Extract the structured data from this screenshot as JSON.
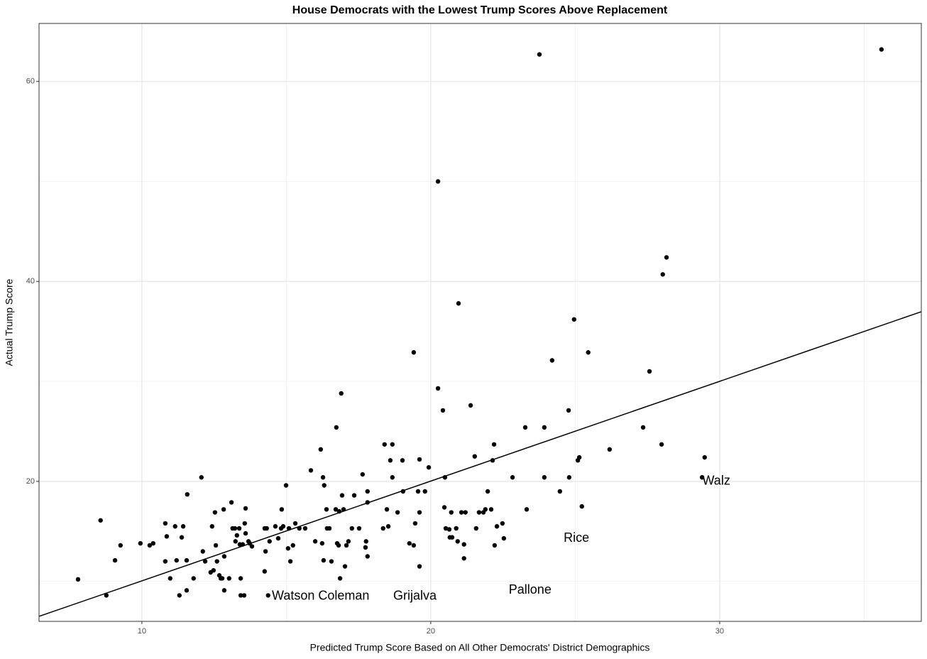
{
  "chart_data": {
    "type": "scatter",
    "title": "House Democrats with the Lowest Trump Scores Above Replacement",
    "x_label": "Predicted Trump Score Based on All Other Democrats' District Demographics",
    "y_label": "Actual Trump Score",
    "xlim": [
      6.44,
      36.98
    ],
    "ylim": [
      6.0,
      65.8
    ],
    "xticks": [
      10,
      20,
      30
    ],
    "yticks": [
      20,
      40,
      60
    ],
    "x_minor_grid": [
      15,
      25,
      35
    ],
    "y_minor_grid": [
      10,
      30,
      50
    ],
    "grid": true,
    "color": "#000000",
    "trend_line": {
      "x": [
        6.44,
        36.98
      ],
      "y": [
        6.5,
        36.97
      ],
      "color": "#000000"
    },
    "annotations": [
      {
        "text": "Watson Coleman",
        "x": 14.5,
        "y": 8.5
      },
      {
        "text": "Grijalva",
        "x": 18.7,
        "y": 8.5
      },
      {
        "text": "Pallone",
        "x": 22.7,
        "y": 9.1
      },
      {
        "text": "Rice",
        "x": 24.6,
        "y": 14.3
      },
      {
        "text": "Walz",
        "x": 29.4,
        "y": 20.0
      }
    ],
    "x": [
      7.79,
      8.57,
      8.77,
      9.07,
      9.26,
      9.95,
      10.27,
      10.39,
      10.81,
      10.86,
      10.81,
      10.98,
      11.15,
      11.2,
      11.3,
      11.38,
      11.43,
      11.55,
      11.55,
      11.57,
      11.79,
      12.06,
      12.11,
      12.19,
      12.38,
      12.43,
      12.48,
      12.53,
      12.56,
      12.6,
      12.68,
      12.73,
      12.78,
      12.83,
      12.85,
      12.85,
      13.02,
      13.1,
      13.14,
      13.22,
      13.24,
      13.29,
      13.37,
      13.39,
      13.42,
      13.42,
      13.49,
      13.54,
      13.56,
      13.59,
      13.59,
      13.69,
      13.73,
      13.81,
      14.25,
      14.25,
      14.28,
      14.32,
      14.37,
      14.42,
      14.62,
      14.72,
      14.82,
      14.84,
      14.89,
      14.99,
      15.06,
      15.09,
      15.14,
      15.23,
      15.31,
      15.45,
      15.65,
      15.85,
      16.0,
      16.19,
      16.24,
      16.27,
      16.29,
      16.31,
      16.39,
      16.41,
      16.49,
      16.56,
      16.71,
      16.73,
      16.76,
      16.81,
      16.83,
      16.86,
      16.9,
      16.93,
      16.98,
      17.03,
      17.08,
      17.15,
      17.27,
      17.35,
      17.52,
      17.64,
      17.74,
      17.76,
      17.81,
      17.81,
      17.81,
      18.35,
      18.4,
      18.48,
      18.53,
      18.6,
      18.67,
      18.67,
      18.85,
      19.02,
      19.04,
      19.26,
      19.41,
      19.41,
      19.46,
      19.56,
      19.61,
      19.61,
      19.61,
      19.8,
      19.93,
      20.25,
      20.25,
      20.42,
      20.47,
      20.49,
      20.52,
      20.64,
      20.66,
      20.71,
      20.74,
      20.88,
      20.93,
      20.96,
      21.06,
      21.15,
      21.15,
      21.2,
      21.38,
      21.52,
      21.57,
      21.67,
      21.82,
      21.89,
      21.97,
      22.09,
      22.14,
      22.19,
      22.21,
      22.29,
      22.48,
      22.53,
      22.83,
      23.27,
      23.32,
      23.76,
      23.93,
      23.93,
      24.2,
      24.47,
      24.77,
      24.79,
      24.96,
      25.09,
      25.14,
      25.23,
      25.45,
      26.19,
      27.35,
      27.57,
      27.99,
      28.03,
      28.16,
      29.39,
      29.48,
      35.6
    ],
    "values": [
      10.2,
      16.1,
      8.6,
      12.1,
      13.6,
      13.8,
      13.6,
      13.8,
      15.8,
      14.5,
      12.0,
      10.3,
      15.5,
      12.1,
      8.6,
      14.4,
      15.5,
      12.1,
      9.1,
      18.7,
      10.3,
      20.4,
      13.0,
      12.0,
      10.9,
      15.5,
      11.1,
      16.9,
      13.6,
      12.0,
      10.6,
      10.3,
      10.3,
      17.2,
      9.1,
      12.5,
      10.3,
      17.9,
      15.3,
      15.3,
      14.0,
      14.6,
      15.3,
      13.7,
      10.3,
      8.6,
      13.7,
      8.6,
      15.8,
      17.3,
      14.8,
      14.0,
      13.8,
      13.5,
      15.3,
      11.0,
      13.0,
      15.3,
      8.6,
      14.0,
      15.5,
      14.3,
      15.3,
      17.2,
      15.5,
      19.6,
      13.3,
      15.3,
      12.0,
      13.6,
      15.8,
      15.3,
      15.3,
      21.1,
      14.0,
      23.2,
      13.8,
      20.4,
      12.1,
      19.6,
      17.2,
      15.3,
      15.3,
      12.0,
      17.2,
      25.4,
      13.8,
      13.6,
      17.0,
      10.3,
      28.8,
      18.6,
      17.2,
      11.5,
      13.6,
      14.0,
      15.3,
      18.6,
      15.3,
      20.7,
      13.4,
      14.0,
      12.5,
      19.0,
      17.9,
      15.3,
      23.7,
      17.2,
      15.5,
      22.1,
      23.7,
      20.4,
      16.9,
      22.1,
      19.0,
      13.8,
      32.9,
      13.6,
      15.8,
      19.0,
      11.5,
      16.9,
      22.2,
      19.0,
      21.4,
      29.3,
      50.0,
      27.1,
      17.4,
      20.4,
      15.3,
      15.2,
      14.4,
      16.9,
      14.4,
      15.3,
      14.0,
      37.8,
      16.9,
      13.7,
      12.3,
      16.9,
      27.6,
      22.5,
      15.3,
      16.9,
      16.9,
      17.2,
      19.0,
      17.2,
      22.1,
      23.7,
      13.6,
      15.5,
      15.8,
      14.3,
      20.4,
      25.4,
      17.2,
      62.7,
      25.4,
      20.4,
      32.1,
      19.0,
      27.1,
      20.4,
      36.2,
      22.1,
      22.4,
      17.5,
      32.9,
      23.2,
      25.4,
      31.0,
      23.7,
      40.7,
      42.4,
      20.4,
      22.4,
      63.2
    ]
  }
}
